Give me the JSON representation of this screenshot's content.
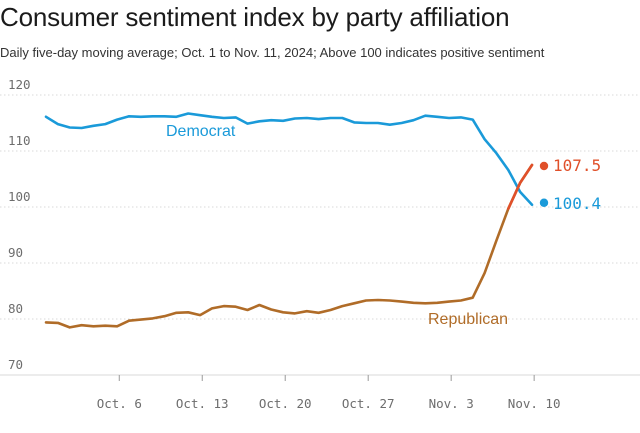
{
  "title": "Consumer sentiment index by party affiliation",
  "subtitle": "Daily five-day moving average; Oct. 1 to Nov. 11, 2024; Above 100 indicates positive sentiment",
  "chart_data": {
    "type": "line",
    "title": "Consumer sentiment index by party affiliation",
    "ylim": [
      70,
      120
    ],
    "y_ticks": [
      "70",
      "80",
      "90",
      "100",
      "110",
      "120"
    ],
    "x_range_days": [
      0,
      41
    ],
    "x_ticks": [
      {
        "label": "Oct. 6",
        "day": 5
      },
      {
        "label": "Oct. 13",
        "day": 12
      },
      {
        "label": "Oct. 20",
        "day": 19
      },
      {
        "label": "Oct. 27",
        "day": 26
      },
      {
        "label": "Nov. 3",
        "day": 33
      },
      {
        "label": "Nov. 10",
        "day": 40
      }
    ],
    "series": [
      {
        "name": "Democrat",
        "color": "#1a9ad9",
        "end_label": "100.4",
        "values": [
          116.1,
          114.8,
          114.2,
          114.1,
          114.5,
          114.8,
          115.6,
          116.2,
          116.1,
          116.2,
          116.2,
          116.1,
          116.7,
          116.4,
          116.1,
          115.9,
          116.0,
          114.9,
          115.3,
          115.5,
          115.4,
          115.8,
          115.9,
          115.7,
          115.9,
          115.9,
          115.1,
          115.0,
          115.0,
          114.7,
          115.0,
          115.5,
          116.3,
          116.1,
          115.9,
          116.0,
          115.6,
          112.1,
          109.6,
          106.6,
          102.7,
          100.4
        ]
      },
      {
        "name": "Republican",
        "color": "#b06c28",
        "end_color": "#e0502a",
        "end_label": "107.5",
        "values": [
          79.4,
          79.3,
          78.5,
          78.9,
          78.7,
          78.8,
          78.7,
          79.7,
          79.9,
          80.1,
          80.5,
          81.1,
          81.2,
          80.7,
          81.9,
          82.3,
          82.2,
          81.6,
          82.5,
          81.7,
          81.2,
          81.0,
          81.4,
          81.1,
          81.6,
          82.3,
          82.8,
          83.3,
          83.4,
          83.3,
          83.1,
          82.9,
          82.8,
          82.9,
          83.1,
          83.3,
          83.8,
          88.2,
          94.0,
          99.7,
          104.3,
          107.5
        ]
      }
    ]
  }
}
